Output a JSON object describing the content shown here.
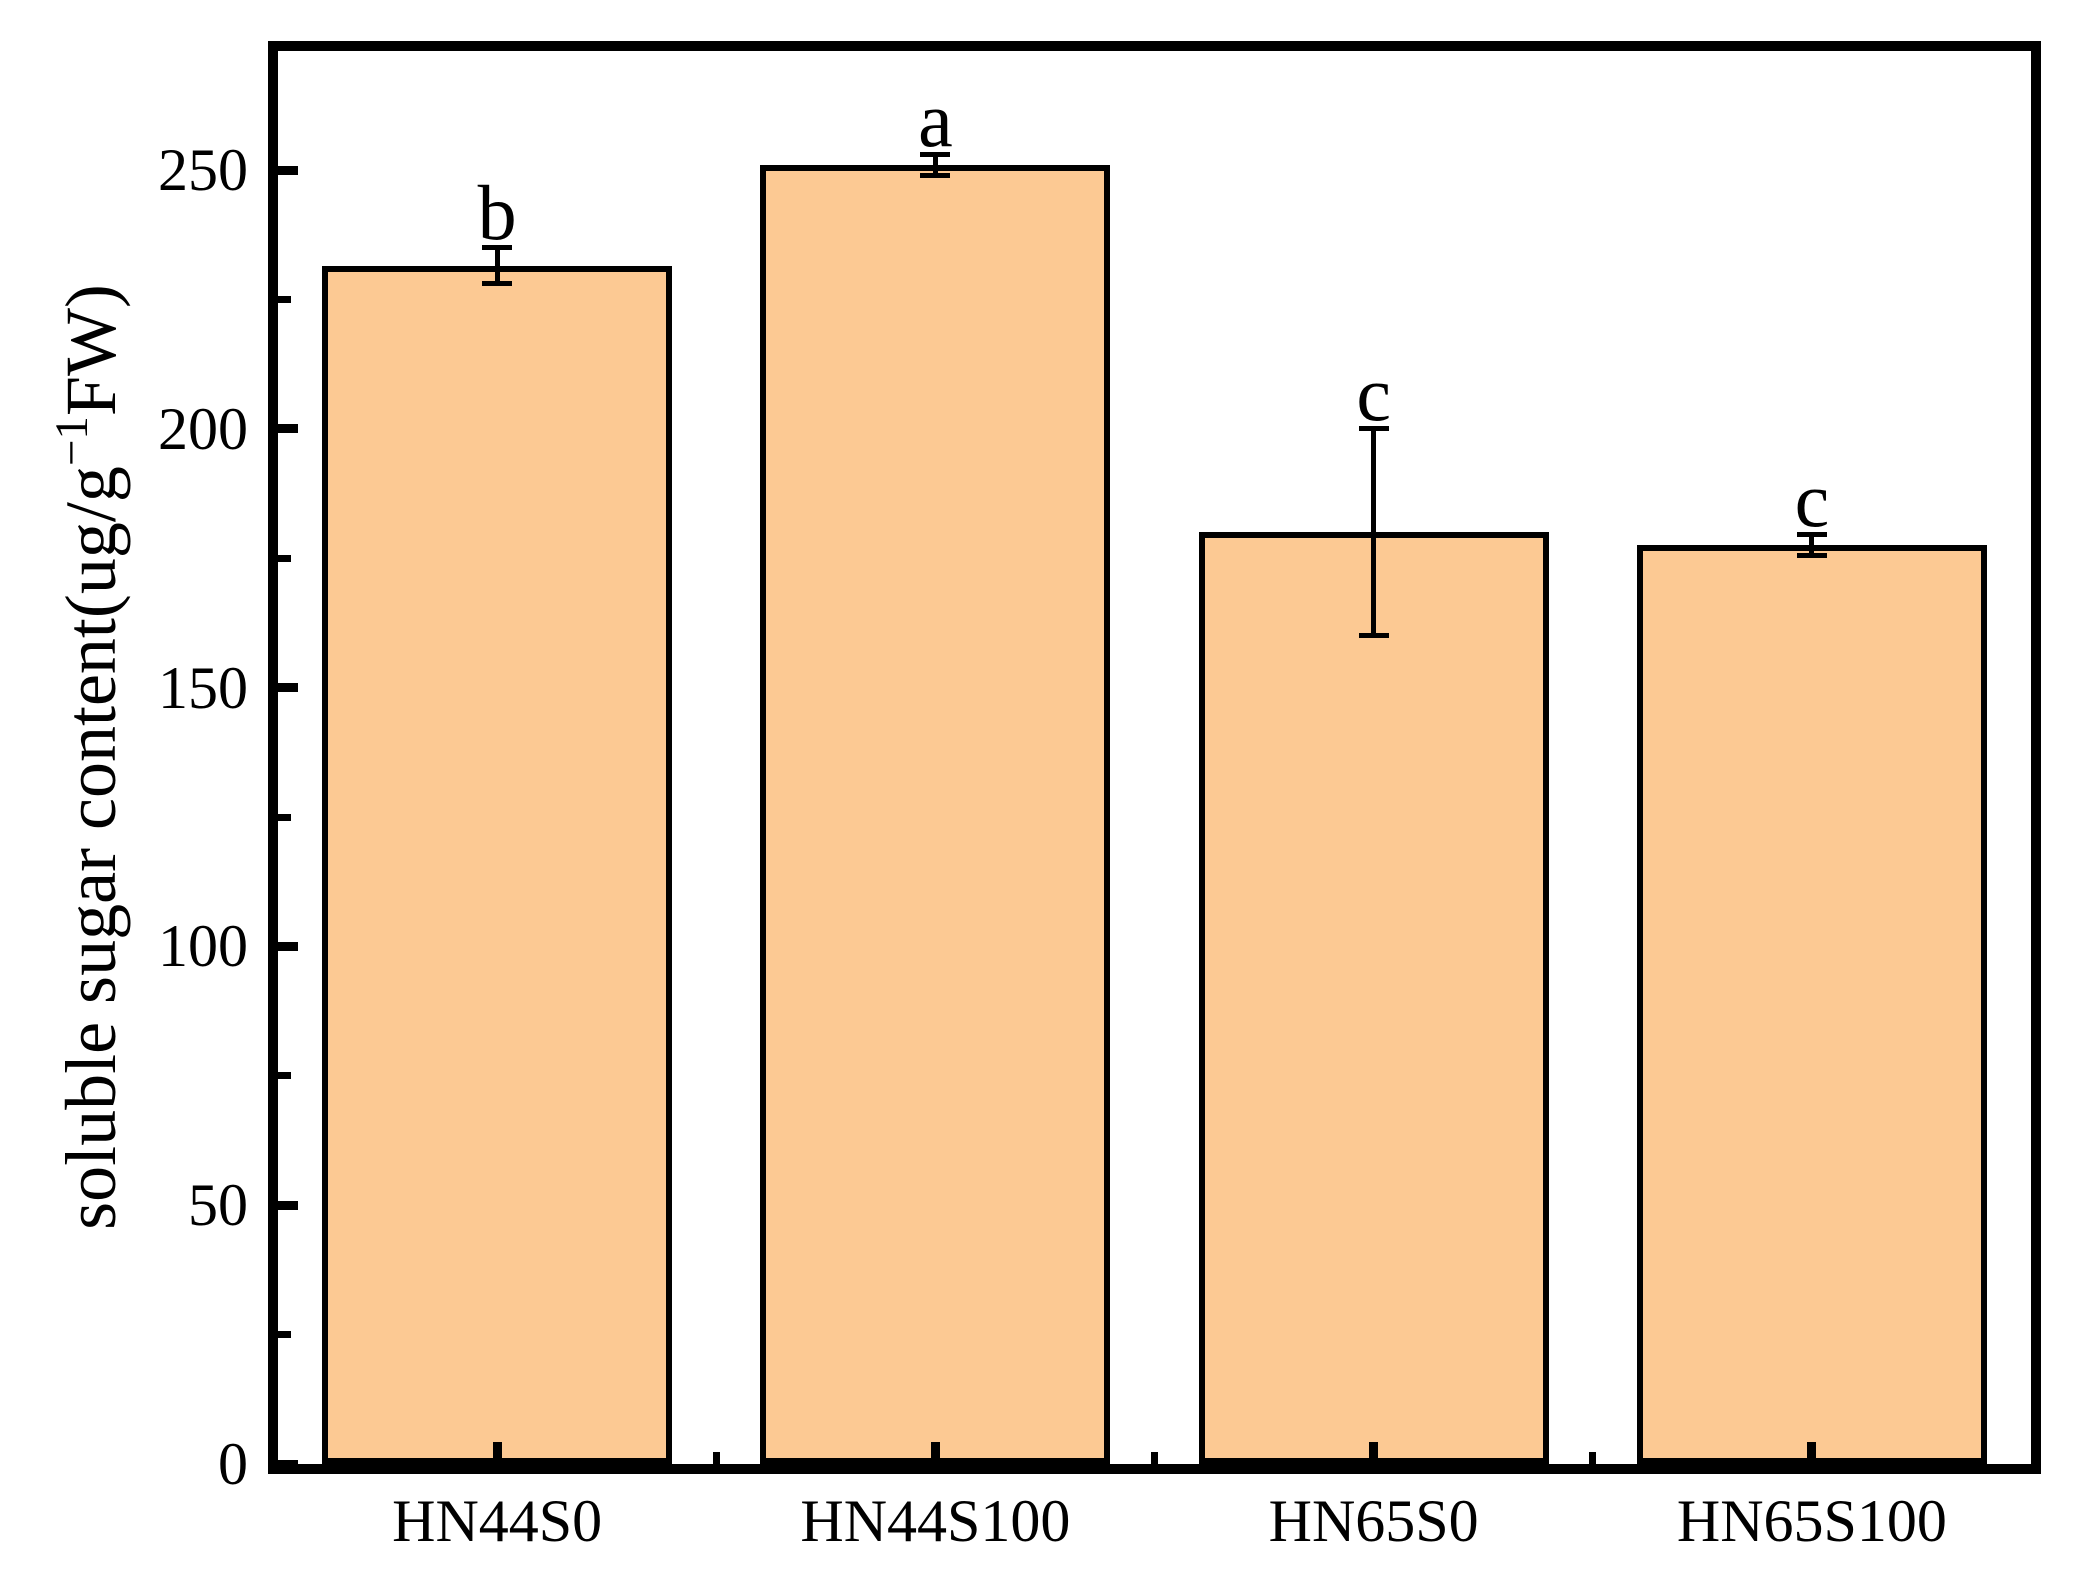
{
  "chart_data": {
    "type": "bar",
    "categories": [
      "HN44S0",
      "HN44S100",
      "HN65S0",
      "HN65S100"
    ],
    "values": [
      231.5,
      251,
      180,
      177.5
    ],
    "errors": [
      3.5,
      2,
      20,
      2
    ],
    "sig_letters": [
      "b",
      "a",
      "c",
      "c"
    ],
    "title": "",
    "xlabel": "",
    "ylabel": "soluble sugar content(ug/g−1FW)",
    "ylabel_prefix": "soluble sugar content(ug/g",
    "ylabel_sup": "−1",
    "ylabel_suffix": "FW)",
    "ylim": [
      0,
      273
    ],
    "y_major_ticks": [
      0,
      50,
      100,
      150,
      200,
      250
    ],
    "y_minor_ticks": [
      25,
      75,
      125,
      175,
      225
    ],
    "grid": false,
    "legend": null,
    "bar_color": "#FCC993",
    "bar_edge_color": "#000000",
    "error_bar_color": "#000000",
    "axis_color": "#000000"
  }
}
